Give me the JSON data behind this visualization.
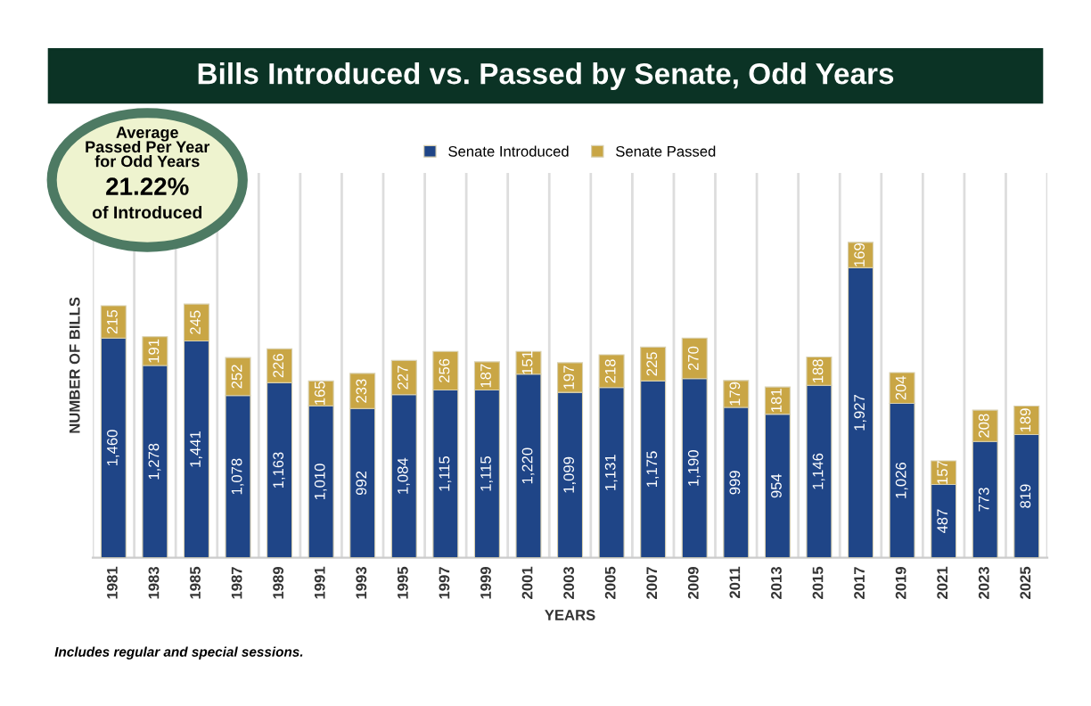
{
  "chart_data": {
    "type": "bar",
    "title": "Bills Introduced vs. Passed by Senate, Odd Years",
    "xlabel": "YEARS",
    "ylabel": "NUMBER OF BILLS",
    "categories": [
      "1981",
      "1983",
      "1985",
      "1987",
      "1989",
      "1991",
      "1993",
      "1995",
      "1997",
      "1999",
      "2001",
      "2003",
      "2005",
      "2007",
      "2009",
      "2011",
      "2013",
      "2015",
      "2017",
      "2019",
      "2021",
      "2023",
      "2025"
    ],
    "series": [
      {
        "name": "Senate Introduced",
        "color": "#1f4587",
        "values": [
          1460,
          1278,
          1441,
          1078,
          1163,
          1010,
          992,
          1084,
          1115,
          1115,
          1220,
          1099,
          1131,
          1175,
          1190,
          999,
          954,
          1146,
          1927,
          1026,
          487,
          773,
          819
        ],
        "value_labels": [
          "1,460",
          "1,278",
          "1,441",
          "1,078",
          "1,163",
          "1,010",
          "992",
          "1,084",
          "1,115",
          "1,115",
          "1,220",
          "1,099",
          "1,131",
          "1,175",
          "1,190",
          "999",
          "954",
          "1,146",
          "1,927",
          "1,026",
          "487",
          "773",
          "819"
        ]
      },
      {
        "name": "Senate Passed",
        "color": "#c9a645",
        "values": [
          215,
          191,
          245,
          252,
          226,
          165,
          233,
          227,
          256,
          187,
          151,
          197,
          218,
          225,
          270,
          179,
          181,
          188,
          169,
          204,
          157,
          208,
          189
        ],
        "value_labels": [
          "215",
          "191",
          "245",
          "252",
          "226",
          "165",
          "233",
          "227",
          "256",
          "187",
          "151",
          "197",
          "218",
          "225",
          "270",
          "179",
          "181",
          "188",
          "169",
          "204",
          "157",
          "208",
          "189"
        ]
      }
    ],
    "stacked": true,
    "legend": "top",
    "grid": "x",
    "tick_labels": "x",
    "annotations": [
      "Average\nPassed Per Year\nfor Odd Years",
      "21.22%",
      "of Introduced",
      "Includes regular and special sessions."
    ]
  }
}
